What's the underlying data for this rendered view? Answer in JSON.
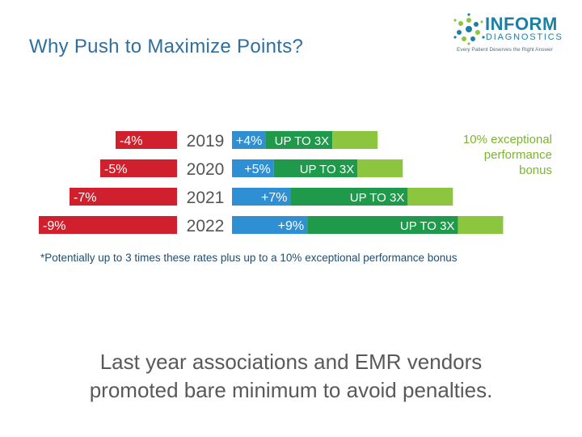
{
  "slide": {
    "title": "Why Push to Maximize Points?",
    "bottom_line1": "Last year associations and EMR vendors",
    "bottom_line2": "promoted bare minimum to avoid penalties."
  },
  "logo": {
    "word1": "INFORM",
    "word2": "DIAGNOSTICS",
    "tagline": "Every Patient Deserves the Right Answer"
  },
  "colors": {
    "penalty": "#d0202e",
    "adjustment": "#2f8fd3",
    "multiplier": "#1e9a4a",
    "bonus": "#8cc63f",
    "year": "#555555",
    "note": "#1f4e6e",
    "bonus_text": "#7ab52e"
  },
  "chart_data": {
    "type": "bar",
    "years": [
      "2019",
      "2020",
      "2021",
      "2022"
    ],
    "penalty_values": [
      -4,
      -5,
      -7,
      -9
    ],
    "penalty_labels": [
      "-4%",
      "-5%",
      "-7%",
      "-9%"
    ],
    "adjustment_values": [
      4,
      5,
      7,
      9
    ],
    "adjustment_labels": [
      "+4%",
      "+5%",
      "+7%",
      "+9%"
    ],
    "multiplier_label": "UP TO 3X",
    "multiplier_factor": 3,
    "bonus_percent": 10,
    "bonus_label": [
      "10% exceptional",
      "performance",
      "bonus"
    ],
    "footnote": "*Potentially up to 3 times these rates plus up to a 10% exceptional performance bonus"
  }
}
